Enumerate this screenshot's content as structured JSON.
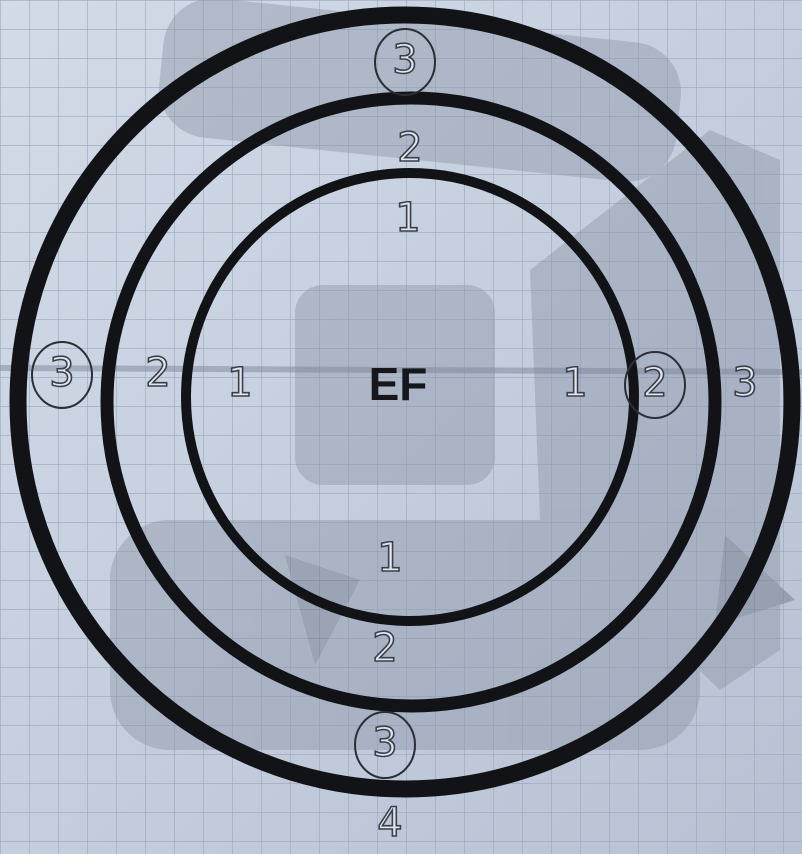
{
  "center_label": "EF",
  "labels": {
    "top": [
      {
        "text": "3",
        "circled": true
      },
      {
        "text": "2",
        "circled": false
      },
      {
        "text": "1",
        "circled": false
      }
    ],
    "left": [
      {
        "text": "3",
        "circled": true
      },
      {
        "text": "2",
        "circled": false
      },
      {
        "text": "1",
        "circled": false
      }
    ],
    "right": [
      {
        "text": "1",
        "circled": false
      },
      {
        "text": "2",
        "circled": true
      },
      {
        "text": "3",
        "circled": false
      }
    ],
    "bottom": [
      {
        "text": "1",
        "circled": false
      },
      {
        "text": "2",
        "circled": false
      },
      {
        "text": "3",
        "circled": true
      },
      {
        "text": "4",
        "circled": false
      }
    ]
  }
}
